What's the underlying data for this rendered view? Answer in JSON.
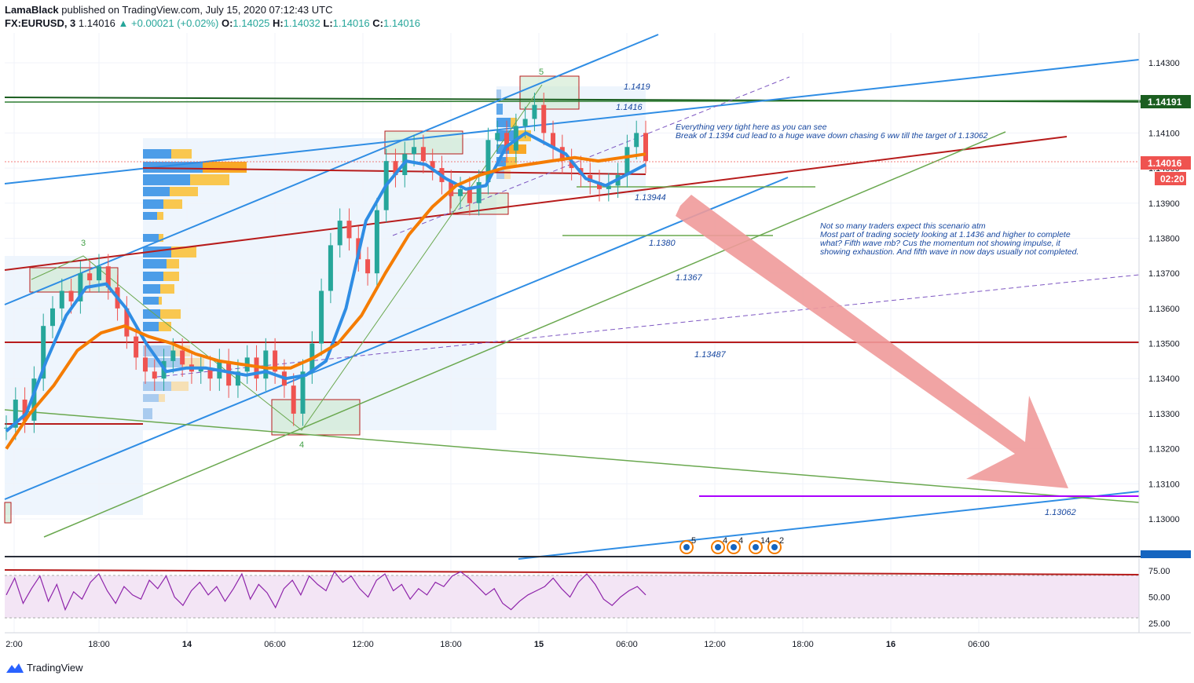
{
  "header": {
    "author": "LamaBlack",
    "published_text": "published on TradingView.com, July 15, 2020 07:12:43 UTC",
    "symbol": "FX:EURUSD, 3",
    "last": "1.14016",
    "change": "▲ +0.00021 (+0.02%)",
    "o_label": "O:",
    "o": "1.14025",
    "h_label": "H:",
    "h": "1.14032",
    "l_label": "L:",
    "l": "1.14016",
    "c_label": "C:",
    "c": "1.14016"
  },
  "branding": {
    "name": "TradingView"
  },
  "colors": {
    "up": "#26a69a",
    "blue": "#2f8de4",
    "orange": "#f57c00",
    "darkred": "#b71c1c",
    "green": "#6aa84f",
    "purple": "#9c27b0",
    "arrow": "#ef9a9a"
  },
  "chart_data": {
    "type": "line",
    "title": "",
    "price_axis": {
      "range": [
        1.1292,
        1.1436
      ],
      "ticks": [
        "1.14300",
        "1.14100",
        "1.14000",
        "1.13900",
        "1.13800",
        "1.13700",
        "1.13600",
        "1.13500",
        "1.13400",
        "1.13300",
        "1.13200",
        "1.13100",
        "1.13000"
      ],
      "tick_values": [
        1.143,
        1.141,
        1.14,
        1.139,
        1.138,
        1.137,
        1.136,
        1.135,
        1.134,
        1.133,
        1.132,
        1.131,
        1.13
      ],
      "current_price_label": "1.14016",
      "countdown": "02:20",
      "resistance_label": "1.14191"
    },
    "time_axis": {
      "ticks": [
        "2:00",
        "18:00",
        "14",
        "06:00",
        "12:00",
        "18:00",
        "15",
        "06:00",
        "12:00",
        "18:00",
        "16",
        "06:00"
      ]
    },
    "price_series": {
      "name": "",
      "values": [
        1.1326,
        1.1334,
        1.1328,
        1.134,
        1.1355,
        1.136,
        1.1365,
        1.1362,
        1.137,
        1.1368,
        1.1372,
        1.1366,
        1.136,
        1.1352,
        1.1346,
        1.1342,
        1.134,
        1.1345,
        1.1348,
        1.1344,
        1.1342,
        1.1343,
        1.134,
        1.1345,
        1.1338,
        1.1342,
        1.1346,
        1.134,
        1.1348,
        1.1342,
        1.1338,
        1.133,
        1.1342,
        1.135,
        1.1365,
        1.1378,
        1.1385,
        1.138,
        1.1374,
        1.137,
        1.1388,
        1.1402,
        1.1398,
        1.1404,
        1.1406,
        1.1402,
        1.14,
        1.1396,
        1.1392,
        1.1394,
        1.139,
        1.1396,
        1.1408,
        1.141,
        1.1405,
        1.1412,
        1.1414,
        1.1418,
        1.141,
        1.1406,
        1.1402,
        1.14,
        1.1398,
        1.1396,
        1.1394,
        1.1395,
        1.1398,
        1.1406,
        1.141,
        1.1402
      ]
    },
    "series": [
      {
        "name": "",
        "color": "#2f8de4",
        "values": [
          1.1325,
          1.133,
          1.1345,
          1.1358,
          1.1366,
          1.1367,
          1.136,
          1.135,
          1.1342,
          1.1343,
          1.1343,
          1.1342,
          1.1341,
          1.1342,
          1.134,
          1.1341,
          1.1345,
          1.136,
          1.1385,
          1.1395,
          1.1402,
          1.1401,
          1.1397,
          1.1394,
          1.1395,
          1.1406,
          1.141,
          1.1407,
          1.1404,
          1.1397,
          1.1395,
          1.1398,
          1.1401
        ]
      },
      {
        "name": "",
        "color": "#f57c00",
        "values": [
          1.132,
          1.133,
          1.1338,
          1.1348,
          1.1353,
          1.1355,
          1.1352,
          1.135,
          1.1347,
          1.1345,
          1.1344,
          1.1343,
          1.1343,
          1.1346,
          1.135,
          1.1358,
          1.137,
          1.1381,
          1.1389,
          1.1395,
          1.1398,
          1.14,
          1.1401,
          1.1402,
          1.1403,
          1.1402,
          1.1403,
          1.1404
        ]
      }
    ],
    "levels": [
      "1.1419",
      "1.1416",
      "1.13944",
      "1.1380",
      "1.1367",
      "1.13487",
      "1.13062"
    ],
    "level_values": [
      1.1419,
      1.1416,
      1.13944,
      1.138,
      1.1367,
      1.13487,
      1.13062
    ],
    "wave_labels": [
      "3",
      "4",
      "5"
    ],
    "annotations": [
      "Everything very tight here as you can see",
      "Break of 1.1394 cud lead to a huge wave down chasing 6 ww till the target of 1.13062",
      "Not so many traders expect this scenario atm",
      "Most part of trading society looking at 1.1436 and higher to complete",
      "what? Fifth wave mb? Cus the momentum not showing impulse, it",
      "showing exhaustion. And fifth wave in now days usually not completed."
    ],
    "event_badges": [
      "5",
      "4",
      "4",
      "14",
      "2"
    ],
    "oscillator": {
      "ticks": [
        "75.00",
        "50.00",
        "25.00"
      ],
      "tick_values": [
        75,
        50,
        25
      ],
      "band": [
        30,
        70
      ],
      "values": [
        52,
        68,
        44,
        58,
        70,
        46,
        62,
        38,
        55,
        48,
        64,
        72,
        56,
        44,
        60,
        52,
        48,
        66,
        58,
        70,
        50,
        42,
        56,
        64,
        52,
        60,
        46,
        58,
        72,
        48,
        62,
        54,
        40,
        58,
        66,
        52,
        70,
        62,
        56,
        74,
        64,
        70,
        58,
        50,
        66,
        72,
        56,
        62,
        48,
        58,
        52,
        64,
        60,
        70,
        74,
        68,
        60,
        52,
        58,
        44,
        38,
        46,
        52,
        56,
        60,
        68,
        58,
        50,
        64,
        72,
        62,
        48,
        42,
        50,
        56,
        60,
        52
      ]
    }
  }
}
